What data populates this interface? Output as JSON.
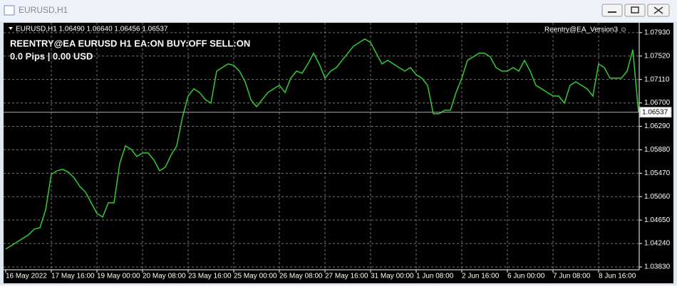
{
  "window": {
    "title": "EURUSD,H1"
  },
  "chart_data": {
    "type": "line",
    "header": "EURUSD,H1  1.06490 1.06640 1.06456 1.06537",
    "ea_name": "Reentry@EA_Version3 ☺",
    "status": "REENTRY@EA EURUSD H1 EA:ON BUY:OFF SELL:ON",
    "profit": "0.0 Pips | 0.00 USD",
    "series": [
      {
        "color": "#33cc33",
        "values": [
          1.04142,
          1.04204,
          1.04267,
          1.04329,
          1.04391,
          1.04491,
          1.04516,
          1.04827,
          1.0545,
          1.05513,
          1.05538,
          1.05488,
          1.05388,
          1.05239,
          1.05139,
          1.04952,
          1.04765,
          1.04703,
          1.04952,
          1.04952,
          1.05637,
          1.05949,
          1.05887,
          1.05762,
          1.05824,
          1.05824,
          1.057,
          1.05513,
          1.05575,
          1.05787,
          1.05949,
          1.06447,
          1.06821,
          1.06946,
          1.06883,
          1.06759,
          1.06696,
          1.07257,
          1.07319,
          1.07382,
          1.07357,
          1.07257,
          1.0707,
          1.06759,
          1.06634,
          1.06759,
          1.06883,
          1.06946,
          1.07008,
          1.06883,
          1.07133,
          1.07257,
          1.0722,
          1.07382,
          1.07569,
          1.07382,
          1.07133,
          1.07257,
          1.07319,
          1.07444,
          1.07569,
          1.07693,
          1.07756,
          1.07818,
          1.07756,
          1.07569,
          1.07382,
          1.07444,
          1.07382,
          1.07319,
          1.07257,
          1.07319,
          1.07195,
          1.07133,
          1.07008,
          1.0651,
          1.0651,
          1.06572,
          1.06572,
          1.06883,
          1.07133,
          1.07444,
          1.07506,
          1.07569,
          1.07569,
          1.07506,
          1.07319,
          1.07257,
          1.07257,
          1.07319,
          1.07257,
          1.07444,
          1.07257,
          1.07008,
          1.06946,
          1.06883,
          1.06821,
          1.06821,
          1.06696,
          1.07008,
          1.0707,
          1.07008,
          1.06946,
          1.06821,
          1.07382,
          1.07319,
          1.07133,
          1.07133,
          1.07133,
          1.07257,
          1.07631,
          1.06537
        ]
      }
    ],
    "current_price": {
      "value": 1.06537,
      "label": "1.06537"
    },
    "xlim": [
      0,
      111
    ],
    "xticks": [
      {
        "value": 0,
        "label": "16 May 2022"
      },
      {
        "value": 8,
        "label": "17 May 16:00"
      },
      {
        "value": 16,
        "label": "19 May 00:00"
      },
      {
        "value": 24,
        "label": "20 May 08:00"
      },
      {
        "value": 32,
        "label": "23 May 16:00"
      },
      {
        "value": 40,
        "label": "25 May 00:00"
      },
      {
        "value": 48,
        "label": "26 May 08:00"
      },
      {
        "value": 56,
        "label": "27 May 16:00"
      },
      {
        "value": 64,
        "label": "31 May 00:00"
      },
      {
        "value": 72,
        "label": "1 Jun 08:00"
      },
      {
        "value": 80,
        "label": "2 Jun 16:00"
      },
      {
        "value": 88,
        "label": "6 Jun 00:00"
      },
      {
        "value": 96,
        "label": "7 Jun 08:00"
      },
      {
        "value": 104,
        "label": "8 Jun 16:00"
      }
    ],
    "ylim": [
      1.0378,
      1.0804
    ],
    "yticks": [
      {
        "value": 1.0383,
        "label": "1.03830"
      },
      {
        "value": 1.0424,
        "label": "1.04240"
      },
      {
        "value": 1.0465,
        "label": "1.04650"
      },
      {
        "value": 1.0506,
        "label": "1.05060"
      },
      {
        "value": 1.0547,
        "label": "1.05470"
      },
      {
        "value": 1.0588,
        "label": "1.05880"
      },
      {
        "value": 1.0629,
        "label": "1.06290"
      },
      {
        "value": 1.067,
        "label": "1.06700"
      },
      {
        "value": 1.0711,
        "label": "1.07110"
      },
      {
        "value": 1.0752,
        "label": "1.07520"
      },
      {
        "value": 1.0793,
        "label": "1.07930"
      }
    ],
    "grid": true
  }
}
